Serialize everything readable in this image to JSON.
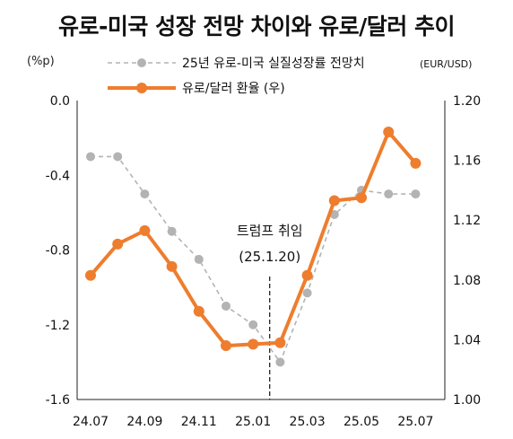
{
  "title": "유로-미국 성장 전망 차이와 유로/달러 추이",
  "units": {
    "left": "(%p)",
    "right": "(EUR/USD)"
  },
  "annotation": {
    "line1": "트럼프 취임",
    "line2": "(25.1.20)"
  },
  "colors": {
    "growth": "#b3b3b3",
    "fx": "#ee7d2e"
  },
  "chart_data": {
    "type": "line",
    "title": "유로-미국 성장 전망 차이와 유로/달러 추이",
    "x": [
      "24.07",
      "24.08",
      "24.09",
      "24.10",
      "24.11",
      "24.12",
      "25.01",
      "25.02",
      "25.03",
      "25.04",
      "25.05",
      "25.06",
      "25.07"
    ],
    "x_tick_labels": [
      "24.07",
      "24.09",
      "24.11",
      "25.01",
      "25.03",
      "25.05",
      "25.07"
    ],
    "y_left": {
      "label": "(%p)",
      "ylim": [
        -1.6,
        0.0
      ],
      "ticks": [
        "0.0",
        "-0.4",
        "-0.8",
        "-1.2",
        "-1.6"
      ]
    },
    "y_right": {
      "label": "(EUR/USD)",
      "ylim": [
        1.0,
        1.2
      ],
      "ticks": [
        "1.20",
        "1.16",
        "1.12",
        "1.08",
        "1.04",
        "1.00"
      ]
    },
    "series": [
      {
        "name": "25년 유로-미국 실질성장률 전망치",
        "axis": "left",
        "style": "dashed",
        "values": [
          -0.3,
          -0.3,
          -0.5,
          -0.7,
          -0.85,
          -1.1,
          -1.2,
          -1.4,
          -1.03,
          -0.61,
          -0.48,
          -0.5,
          -0.5
        ]
      },
      {
        "name": "유로/달러 환율 (우)",
        "axis": "right",
        "style": "solid",
        "values": [
          1.083,
          1.104,
          1.113,
          1.089,
          1.059,
          1.036,
          1.037,
          1.038,
          1.083,
          1.133,
          1.135,
          1.179,
          1.158
        ]
      }
    ],
    "event": {
      "label": "트럼프 취임 (25.1.20)",
      "x": "25.01.20"
    },
    "legend": "top",
    "grid": false
  }
}
